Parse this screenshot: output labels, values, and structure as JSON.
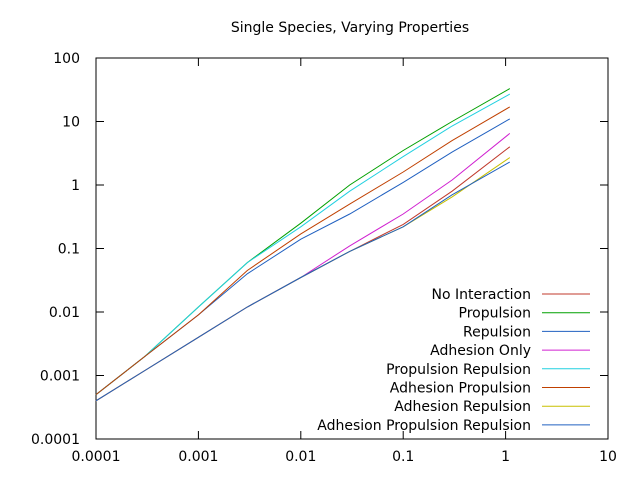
{
  "chart_data": {
    "type": "line",
    "title": "Single Species, Varying Properties",
    "xlabel": "",
    "ylabel": "",
    "x_scale": "log",
    "y_scale": "log",
    "xlim": [
      0.0001,
      10
    ],
    "ylim": [
      0.0001,
      100
    ],
    "x_ticks": [
      {
        "value": 0.0001,
        "label": "0.0001"
      },
      {
        "value": 0.001,
        "label": "0.001"
      },
      {
        "value": 0.01,
        "label": "0.01"
      },
      {
        "value": 0.1,
        "label": "0.1"
      },
      {
        "value": 1,
        "label": "1"
      },
      {
        "value": 10,
        "label": "10"
      }
    ],
    "y_ticks": [
      {
        "value": 0.0001,
        "label": "0.0001"
      },
      {
        "value": 0.001,
        "label": "0.001"
      },
      {
        "value": 0.01,
        "label": "0.01"
      },
      {
        "value": 0.1,
        "label": "0.1"
      },
      {
        "value": 1,
        "label": "1"
      },
      {
        "value": 10,
        "label": "10"
      },
      {
        "value": 100,
        "label": "100"
      }
    ],
    "grid": false,
    "legend_position": "bottom-right",
    "series": [
      {
        "name": "No Interaction",
        "color": "#c0392b",
        "x": [
          0.0001,
          0.0003,
          0.001,
          0.003,
          0.01,
          0.03,
          0.1,
          0.3,
          1.1
        ],
        "y": [
          0.0004,
          0.0012,
          0.004,
          0.012,
          0.035,
          0.09,
          0.24,
          0.8,
          4.0
        ]
      },
      {
        "name": "Propulsion",
        "color": "#00a000",
        "x": [
          0.0001,
          0.0003,
          0.001,
          0.003,
          0.01,
          0.03,
          0.1,
          0.3,
          1.1
        ],
        "y": [
          0.0005,
          0.002,
          0.012,
          0.06,
          0.25,
          1.0,
          3.5,
          10,
          33
        ]
      },
      {
        "name": "Repulsion",
        "color": "#2060c0",
        "x": [
          0.0001,
          0.0003,
          0.001,
          0.003,
          0.01,
          0.03,
          0.1,
          0.3,
          1.1
        ],
        "y": [
          0.0005,
          0.002,
          0.009,
          0.04,
          0.14,
          0.35,
          1.1,
          3.3,
          11
        ]
      },
      {
        "name": "Adhesion Only",
        "color": "#d020d0",
        "x": [
          0.0001,
          0.0003,
          0.001,
          0.003,
          0.01,
          0.03,
          0.1,
          0.3,
          1.1
        ],
        "y": [
          0.0004,
          0.0012,
          0.004,
          0.012,
          0.035,
          0.11,
          0.35,
          1.2,
          6.5
        ]
      },
      {
        "name": "Propulsion Repulsion",
        "color": "#20d0e0",
        "x": [
          0.0001,
          0.0003,
          0.001,
          0.003,
          0.01,
          0.03,
          0.1,
          0.3,
          1.1
        ],
        "y": [
          0.0005,
          0.002,
          0.012,
          0.06,
          0.22,
          0.8,
          2.8,
          8.5,
          27
        ]
      },
      {
        "name": "Adhesion Propulsion",
        "color": "#c04000",
        "x": [
          0.0001,
          0.0003,
          0.001,
          0.003,
          0.01,
          0.03,
          0.1,
          0.3,
          1.1
        ],
        "y": [
          0.0005,
          0.002,
          0.009,
          0.045,
          0.17,
          0.5,
          1.6,
          5.0,
          17
        ]
      },
      {
        "name": "Adhesion Repulsion",
        "color": "#c8c000",
        "x": [
          0.0001,
          0.0003,
          0.001,
          0.003,
          0.01,
          0.03,
          0.1,
          0.3,
          1.1
        ],
        "y": [
          0.0004,
          0.0012,
          0.004,
          0.012,
          0.035,
          0.09,
          0.22,
          0.65,
          2.7
        ]
      },
      {
        "name": "Adhesion Propulsion Repulsion",
        "color": "#2060c0",
        "x": [
          0.0001,
          0.0003,
          0.001,
          0.003,
          0.01,
          0.03,
          0.1,
          0.3,
          1.1
        ],
        "y": [
          0.0004,
          0.0012,
          0.004,
          0.012,
          0.035,
          0.09,
          0.22,
          0.7,
          2.3
        ]
      }
    ]
  }
}
